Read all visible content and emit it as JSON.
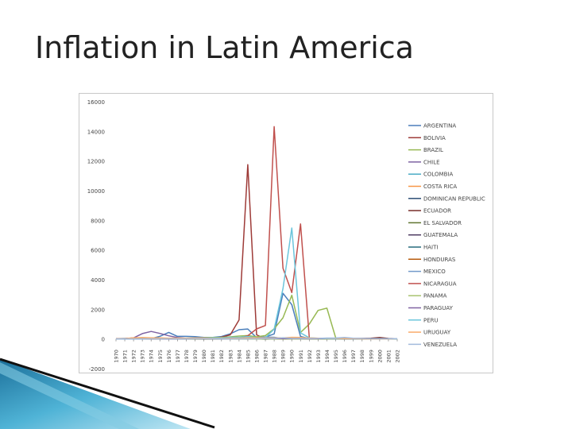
{
  "slide": {
    "title": "Inflation in Latin America"
  },
  "chart_data": {
    "type": "line",
    "title": "",
    "xlabel": "",
    "ylabel": "",
    "ylim": [
      -2000,
      16000
    ],
    "yticks": [
      -2000,
      0,
      2000,
      4000,
      6000,
      8000,
      10000,
      12000,
      14000,
      16000
    ],
    "grid": false,
    "legend_position": "right",
    "x": [
      1970,
      1971,
      1972,
      1973,
      1974,
      1975,
      1976,
      1977,
      1978,
      1979,
      1980,
      1981,
      1982,
      1983,
      1984,
      1985,
      1986,
      1987,
      1988,
      1989,
      1990,
      1991,
      1992,
      1993,
      1994,
      1995,
      1996,
      1997,
      1998,
      1999,
      2000,
      2001,
      2002
    ],
    "series": [
      {
        "name": "ARGENTINA",
        "color": "#4a7ebb",
        "values": [
          13,
          35,
          59,
          61,
          24,
          183,
          444,
          176,
          176,
          159,
          101,
          105,
          165,
          344,
          627,
          672,
          90,
          131,
          343,
          3080,
          2314,
          172,
          25,
          11,
          4,
          3,
          0,
          1,
          1,
          -1,
          -1,
          -1,
          26
        ]
      },
      {
        "name": "BOLIVIA",
        "color": "#9e3b38",
        "values": [
          4,
          4,
          7,
          32,
          63,
          8,
          5,
          8,
          10,
          20,
          47,
          29,
          124,
          275,
          1281,
          11750,
          276,
          15,
          16,
          15,
          17,
          21,
          12,
          9,
          8,
          10,
          12,
          5,
          8,
          2,
          5,
          2,
          1
        ]
      },
      {
        "name": "BRAZIL",
        "color": "#98b954",
        "values": [
          22,
          20,
          17,
          15,
          29,
          28,
          42,
          44,
          39,
          53,
          83,
          106,
          98,
          142,
          198,
          227,
          145,
          230,
          682,
          1430,
          2950,
          440,
          1009,
          1927,
          2076,
          66,
          16,
          7,
          3,
          5,
          7,
          7,
          8
        ]
      },
      {
        "name": "CHILE",
        "color": "#7e63a3",
        "values": [
          33,
          20,
          75,
          361,
          505,
          375,
          212,
          92,
          40,
          33,
          35,
          20,
          10,
          27,
          20,
          31,
          20,
          20,
          15,
          17,
          26,
          22,
          15,
          13,
          11,
          8,
          7,
          6,
          5,
          3,
          4,
          4,
          3
        ]
      },
      {
        "name": "COLOMBIA",
        "color": "#4bacc6",
        "values": [
          7,
          9,
          14,
          21,
          25,
          23,
          21,
          33,
          17,
          25,
          26,
          27,
          24,
          20,
          16,
          24,
          19,
          23,
          28,
          26,
          29,
          30,
          27,
          22,
          23,
          21,
          21,
          18,
          19,
          11,
          9,
          8,
          6
        ]
      },
      {
        "name": "COSTA RICA",
        "color": "#f79646",
        "values": [
          5,
          3,
          5,
          15,
          30,
          17,
          3,
          4,
          6,
          9,
          18,
          37,
          90,
          33,
          12,
          15,
          12,
          17,
          21,
          17,
          19,
          29,
          22,
          10,
          14,
          23,
          18,
          11,
          12,
          10,
          11,
          11,
          9
        ]
      },
      {
        "name": "DOMINICAN REPUBLIC",
        "color": "#2c4d75",
        "values": [
          4,
          4,
          8,
          15,
          13,
          14,
          8,
          13,
          4,
          9,
          17,
          7,
          8,
          5,
          27,
          38,
          10,
          16,
          44,
          46,
          59,
          54,
          5,
          5,
          8,
          13,
          5,
          8,
          5,
          6,
          8,
          9,
          5
        ]
      },
      {
        "name": "ECUADOR",
        "color": "#772c2a",
        "values": [
          5,
          8,
          8,
          13,
          23,
          15,
          11,
          13,
          12,
          10,
          13,
          16,
          16,
          48,
          31,
          28,
          23,
          29,
          58,
          76,
          49,
          49,
          54,
          45,
          27,
          23,
          24,
          31,
          36,
          52,
          96,
          38,
          13
        ]
      },
      {
        "name": "EL SALVADOR",
        "color": "#5f7530",
        "values": [
          3,
          0,
          2,
          6,
          17,
          19,
          7,
          12,
          13,
          15,
          17,
          15,
          12,
          13,
          12,
          22,
          32,
          25,
          20,
          18,
          24,
          14,
          11,
          18,
          11,
          10,
          10,
          5,
          3,
          1,
          2,
          4,
          2
        ]
      },
      {
        "name": "GUATEMALA",
        "color": "#4d3b62",
        "values": [
          2,
          0,
          1,
          14,
          16,
          13,
          11,
          13,
          8,
          11,
          11,
          11,
          0,
          5,
          3,
          19,
          37,
          12,
          11,
          11,
          41,
          33,
          10,
          14,
          11,
          9,
          11,
          9,
          7,
          5,
          6,
          7,
          8
        ]
      },
      {
        "name": "HAITI",
        "color": "#276a7c",
        "values": [
          2,
          8,
          6,
          22,
          15,
          16,
          7,
          6,
          -3,
          13,
          18,
          7,
          7,
          10,
          6,
          10,
          3,
          -11,
          4,
          7,
          21,
          16,
          16,
          44,
          32,
          24,
          21,
          16,
          13,
          8,
          14,
          17,
          9
        ]
      },
      {
        "name": "HONDURAS",
        "color": "#b65708",
        "values": [
          3,
          2,
          5,
          5,
          13,
          8,
          5,
          9,
          6,
          9,
          18,
          9,
          9,
          8,
          5,
          3,
          4,
          2,
          7,
          10,
          36,
          23,
          9,
          13,
          29,
          24,
          24,
          20,
          14,
          11,
          11,
          10,
          8
        ]
      },
      {
        "name": "MEXICO",
        "color": "#729aca",
        "values": [
          5,
          5,
          5,
          12,
          24,
          15,
          16,
          29,
          17,
          18,
          26,
          28,
          59,
          102,
          65,
          58,
          86,
          132,
          114,
          20,
          27,
          23,
          16,
          10,
          7,
          35,
          34,
          21,
          16,
          17,
          10,
          6,
          5
        ]
      },
      {
        "name": "NICARAGUA",
        "color": "#c0504d",
        "values": [
          3,
          6,
          3,
          27,
          13,
          2,
          3,
          11,
          5,
          48,
          35,
          24,
          25,
          31,
          35,
          219,
          681,
          911,
          14316,
          4770,
          3127,
          7755,
          40,
          20,
          7,
          11,
          12,
          9,
          13,
          11,
          10,
          7,
          4
        ]
      },
      {
        "name": "PANAMA",
        "color": "#a8c470",
        "values": [
          3,
          2,
          5,
          7,
          17,
          6,
          4,
          5,
          4,
          8,
          14,
          7,
          4,
          2,
          2,
          1,
          0,
          1,
          0,
          0,
          1,
          1,
          2,
          1,
          1,
          1,
          1,
          1,
          1,
          1,
          1,
          0,
          1
        ]
      },
      {
        "name": "PARAGUAY",
        "color": "#8064a2",
        "values": [
          1,
          5,
          10,
          12,
          25,
          7,
          4,
          9,
          11,
          28,
          22,
          14,
          7,
          13,
          20,
          25,
          31,
          22,
          23,
          26,
          38,
          24,
          15,
          18,
          21,
          13,
          10,
          7,
          12,
          7,
          9,
          7,
          11
        ]
      },
      {
        "name": "PERU",
        "color": "#6cc5dc",
        "values": [
          5,
          7,
          7,
          10,
          17,
          24,
          34,
          38,
          58,
          67,
          59,
          75,
          64,
          111,
          110,
          163,
          78,
          86,
          667,
          3399,
          7482,
          410,
          74,
          49,
          24,
          11,
          12,
          9,
          7,
          3,
          4,
          2,
          0
        ]
      },
      {
        "name": "URUGUAY",
        "color": "#f9ac6b",
        "values": [
          16,
          24,
          76,
          97,
          77,
          81,
          51,
          58,
          45,
          67,
          64,
          34,
          19,
          49,
          55,
          72,
          76,
          64,
          62,
          80,
          113,
          102,
          69,
          54,
          45,
          42,
          28,
          20,
          11,
          6,
          5,
          4,
          14
        ]
      },
      {
        "name": "VENEZUELA",
        "color": "#a3bbdc",
        "values": [
          3,
          3,
          3,
          4,
          8,
          10,
          8,
          8,
          7,
          12,
          21,
          16,
          10,
          6,
          12,
          11,
          12,
          28,
          29,
          84,
          41,
          34,
          31,
          38,
          61,
          60,
          100,
          50,
          36,
          24,
          16,
          12,
          22
        ]
      }
    ]
  }
}
